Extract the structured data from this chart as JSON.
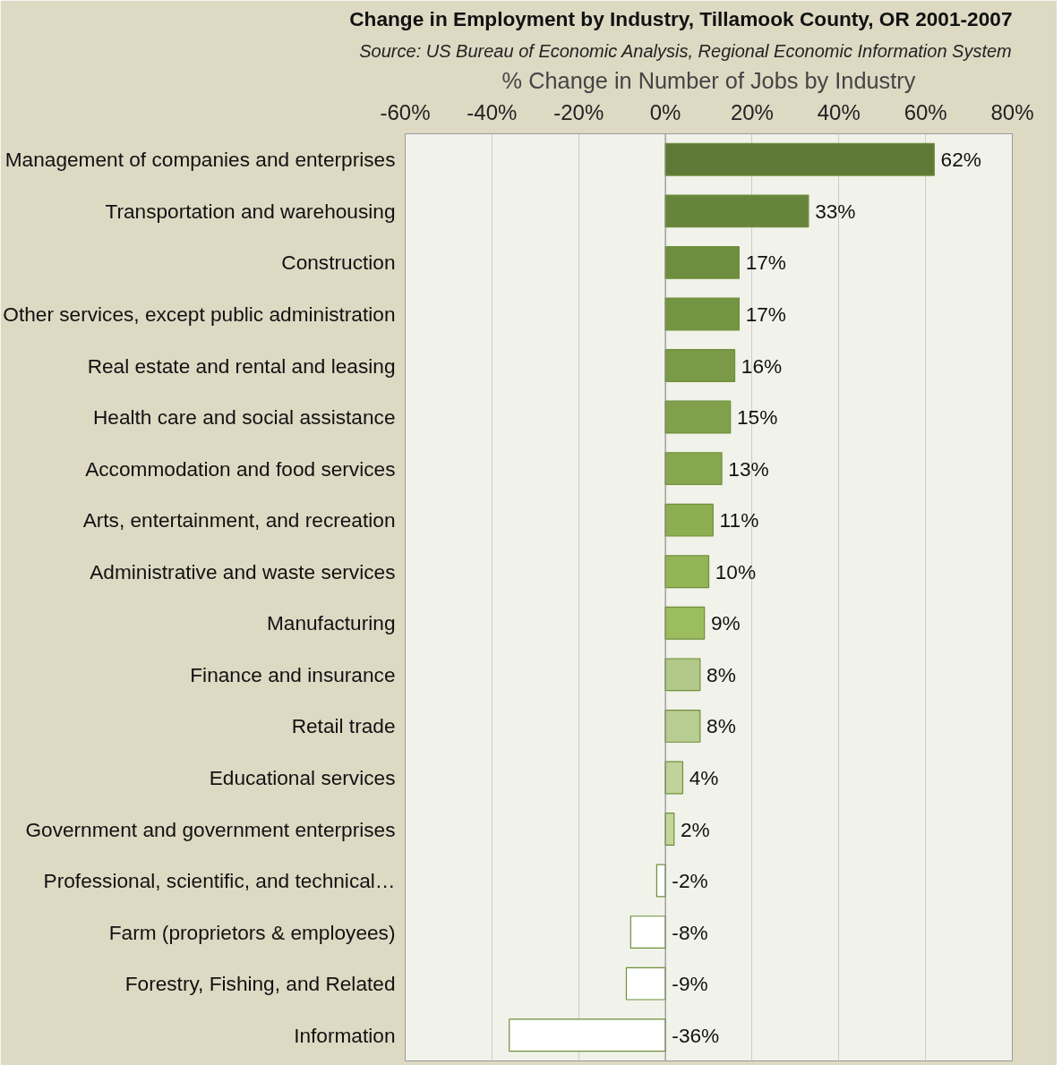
{
  "chart_data": {
    "type": "bar",
    "orientation": "horizontal",
    "title": "Change in Employment by Industry, Tillamook County, OR 2001-2007",
    "subtitle": "Source: US Bureau of Economic Analysis, Regional Economic Information System",
    "xlabel": "% Change in Number of Jobs by Industry",
    "categories": [
      "Management of companies and enterprises",
      "Transportation and warehousing",
      "Construction",
      "Other services, except public administration",
      "Real estate and rental and leasing",
      "Health care and social assistance",
      "Accommodation and food services",
      "Arts, entertainment, and recreation",
      "Administrative and waste services",
      "Manufacturing",
      "Finance and insurance",
      "Retail trade",
      "Educational services",
      "Government and government enterprises",
      "Professional, scientific, and technical…",
      "Farm (proprietors & employees)",
      "Forestry, Fishing, and Related",
      "Information"
    ],
    "values": [
      62,
      33,
      17,
      17,
      16,
      15,
      13,
      11,
      10,
      9,
      8,
      8,
      4,
      2,
      -2,
      -8,
      -9,
      -36
    ],
    "value_labels": [
      "62%",
      "33%",
      "17%",
      "17%",
      "16%",
      "15%",
      "13%",
      "11%",
      "10%",
      "9%",
      "8%",
      "8%",
      "4%",
      "2%",
      "-2%",
      "-8%",
      "-9%",
      "-36%"
    ],
    "colors": [
      "#5f7a37",
      "#66853a",
      "#6e8e3f",
      "#739442",
      "#7a9a47",
      "#80a04b",
      "#87a74f",
      "#8daf52",
      "#93b556",
      "#9bbd5e",
      "#b3c98a",
      "#b8cd91",
      "#c0d39c",
      "#c4d79b",
      "#ffffff",
      "#ffffff",
      "#ffffff",
      "#ffffff"
    ],
    "xlim": [
      -60,
      80
    ],
    "xticks": [
      {
        "value": -60,
        "label": "-60%"
      },
      {
        "value": -40,
        "label": "-40%"
      },
      {
        "value": -20,
        "label": "-20%"
      },
      {
        "value": 0,
        "label": "0%"
      },
      {
        "value": 20,
        "label": "20%"
      },
      {
        "value": 40,
        "label": "40%"
      },
      {
        "value": 60,
        "label": "60%"
      },
      {
        "value": 80,
        "label": "80%"
      }
    ],
    "grid": "x"
  }
}
